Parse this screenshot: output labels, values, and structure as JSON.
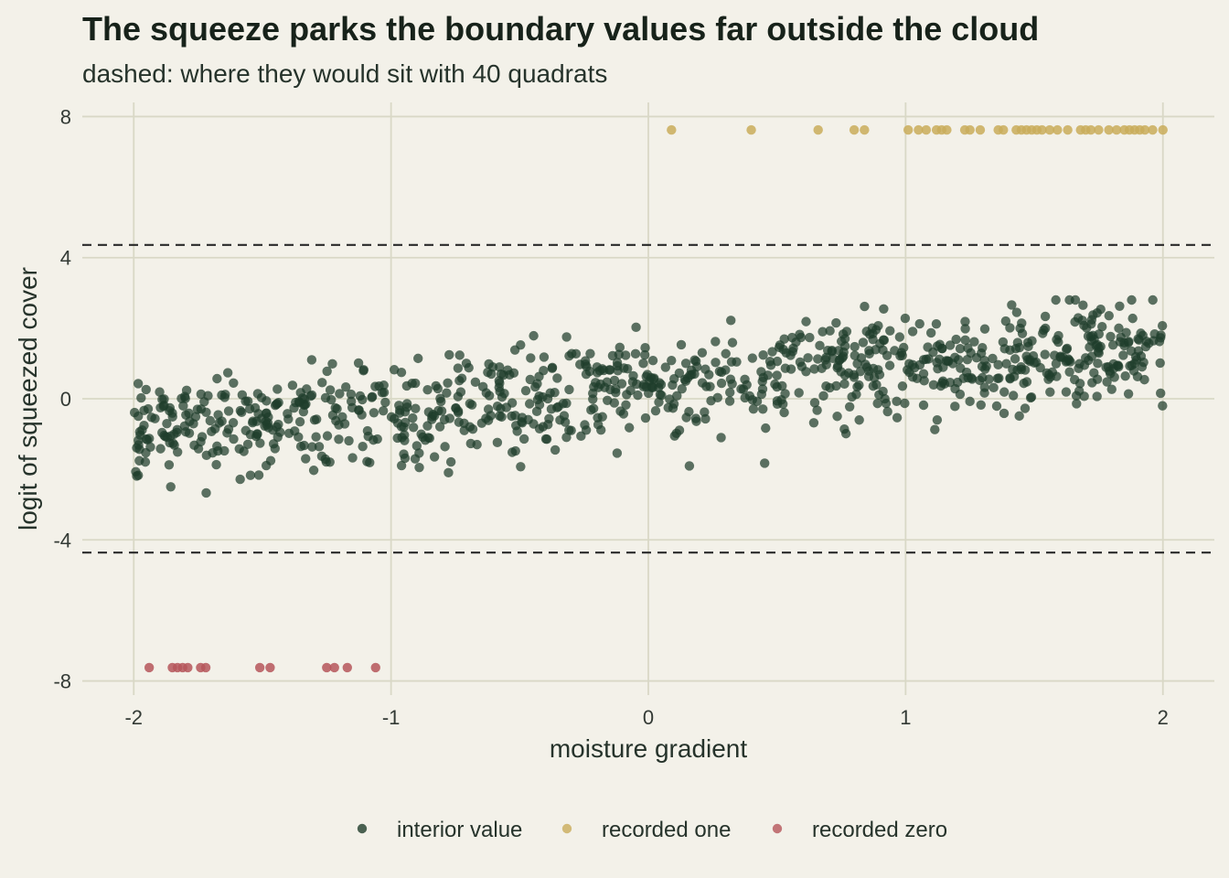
{
  "chart_data": {
    "type": "scatter",
    "title": "The squeeze parks the boundary values far outside the cloud",
    "subtitle": "dashed: where they would sit with 40 quadrats",
    "xlabel": "moisture gradient",
    "ylabel": "logit of squeezed cover",
    "xlim": [
      -2.2,
      2.2
    ],
    "ylim": [
      -8.4,
      8.4
    ],
    "x_ticks": [
      -2,
      -1,
      0,
      1,
      2
    ],
    "y_ticks": [
      -8,
      -4,
      0,
      4,
      8
    ],
    "x_tick_labels": [
      "-2",
      "-1",
      "0",
      "1",
      "2"
    ],
    "y_tick_labels": [
      "-8",
      "-4",
      "0",
      "4",
      "8"
    ],
    "grid": true,
    "reference_lines": [
      {
        "axis": "y",
        "value": 4.36,
        "style": "dashed"
      },
      {
        "axis": "y",
        "value": -4.36,
        "style": "dashed"
      }
    ],
    "legend_position": "bottom",
    "series": [
      {
        "name": "interior value",
        "color": "#1f3d2b",
        "description_trend": {
          "slope": 0.6,
          "intercept": 0.3,
          "n_points": 960
        }
      },
      {
        "name": "recorded one",
        "color": "#c9ad5a",
        "y": 7.62,
        "x": [
          0.09,
          0.4,
          0.66,
          0.8,
          0.84,
          1.01,
          1.05,
          1.08,
          1.12,
          1.14,
          1.16,
          1.23,
          1.25,
          1.29,
          1.36,
          1.38,
          1.43,
          1.45,
          1.47,
          1.49,
          1.51,
          1.53,
          1.56,
          1.59,
          1.63,
          1.68,
          1.7,
          1.72,
          1.75,
          1.79,
          1.82,
          1.85,
          1.87,
          1.89,
          1.91,
          1.93,
          1.96,
          2.0
        ]
      },
      {
        "name": "recorded zero",
        "color": "#b5565a",
        "y": -7.62,
        "x": [
          -1.94,
          -1.85,
          -1.83,
          -1.81,
          -1.79,
          -1.74,
          -1.72,
          -1.51,
          -1.47,
          -1.25,
          -1.22,
          -1.17,
          -1.06
        ]
      }
    ]
  }
}
